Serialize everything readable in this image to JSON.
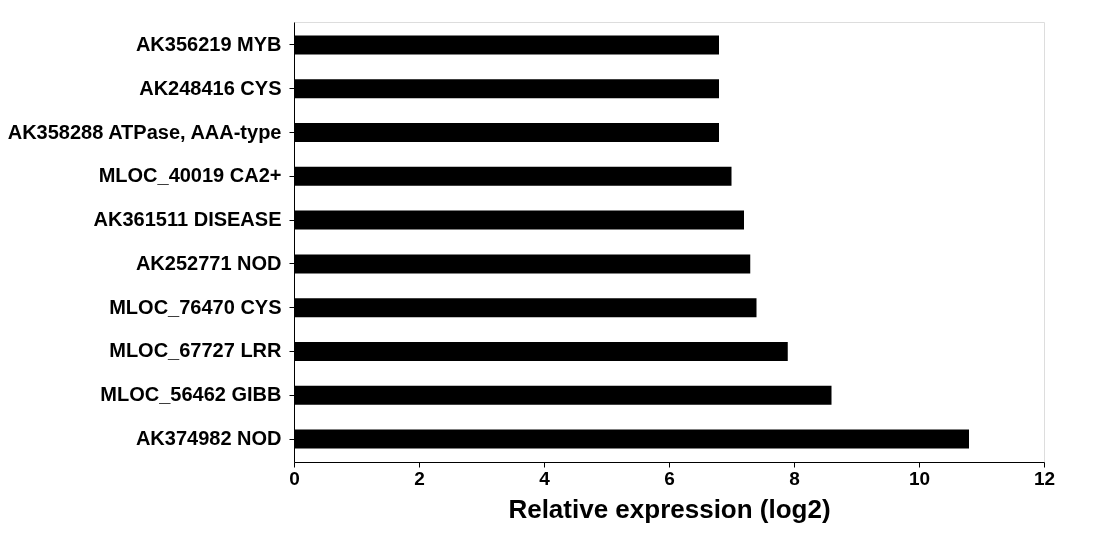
{
  "chart_data": {
    "type": "bar",
    "orientation": "horizontal",
    "xlabel": "Relative expression (log2)",
    "categories": [
      "AK356219 MYB",
      "AK248416 CYS",
      "AK358288 ATPase, AAA-type",
      "MLOC_40019 CA2+",
      "AK361511 DISEASE",
      "AK252771 NOD",
      "MLOC_76470 CYS",
      "MLOC_67727 LRR",
      "MLOC_56462 GIBB",
      "AK374982 NOD"
    ],
    "values": [
      6.8,
      6.8,
      6.8,
      7.0,
      7.2,
      7.3,
      7.4,
      7.9,
      8.6,
      10.8
    ],
    "color": "#000000",
    "xlim": [
      0,
      12
    ],
    "xticks": [
      0,
      2,
      4,
      6,
      8,
      10,
      12
    ],
    "grid": false
  }
}
